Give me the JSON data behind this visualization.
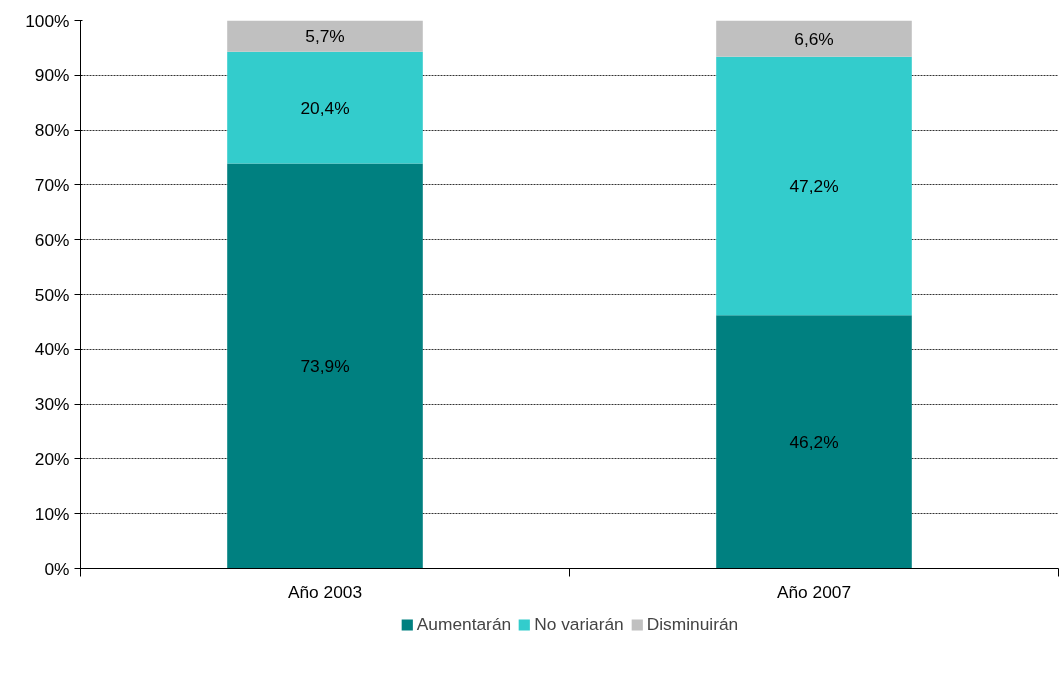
{
  "chart_data": {
    "type": "bar",
    "stacked": true,
    "categories": [
      "Año 2003",
      "Año 2007"
    ],
    "series": [
      {
        "name": "Aumentarán",
        "color": "#008080",
        "values": [
          73.9,
          46.2
        ],
        "value_labels": [
          "73,9%",
          "46,2%"
        ]
      },
      {
        "name": "No variarán",
        "color": "#33cccc",
        "values": [
          20.4,
          47.2
        ],
        "value_labels": [
          "20,4%",
          "47,2%"
        ]
      },
      {
        "name": "Disminuirán",
        "color": "#c0c0c0",
        "values": [
          5.7,
          6.6
        ],
        "value_labels": [
          "5,7%",
          "6,6%"
        ]
      }
    ],
    "ylim": [
      0,
      100
    ],
    "yticks": [
      {
        "value": 0,
        "label": "0%"
      },
      {
        "value": 10,
        "label": "10%"
      },
      {
        "value": 20,
        "label": "20%"
      },
      {
        "value": 30,
        "label": "30%"
      },
      {
        "value": 40,
        "label": "40%"
      },
      {
        "value": 50,
        "label": "50%"
      },
      {
        "value": 60,
        "label": "60%"
      },
      {
        "value": 70,
        "label": "70%"
      },
      {
        "value": 80,
        "label": "80%"
      },
      {
        "value": 90,
        "label": "90%"
      },
      {
        "value": 100,
        "label": "100%"
      }
    ],
    "grid": "y",
    "legend": "bottom"
  }
}
